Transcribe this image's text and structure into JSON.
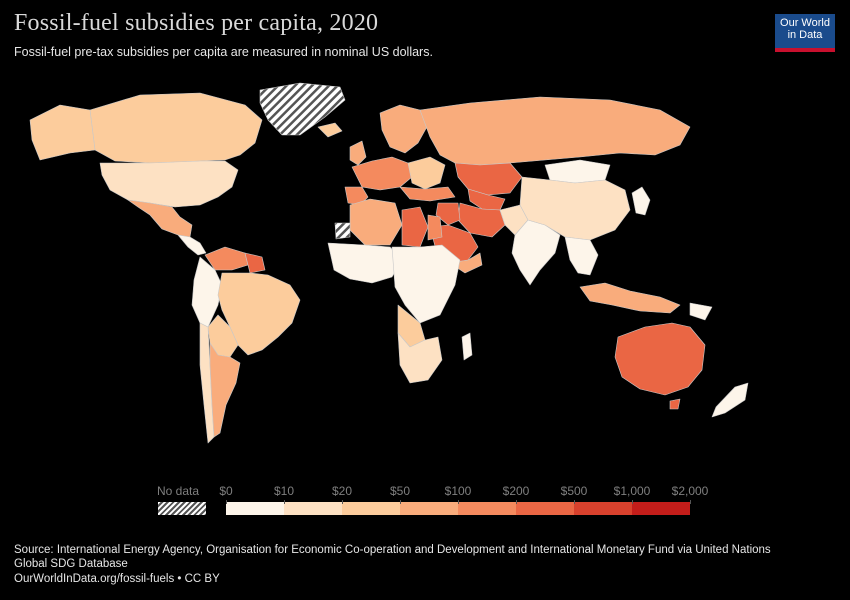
{
  "header": {
    "title": "Fossil-fuel subsidies per capita, 2020",
    "subtitle": "Fossil-fuel pre-tax subsidies per capita are measured in nominal US dollars."
  },
  "logo": {
    "line1": "Our World",
    "line2": "in Data",
    "bg_color": "#1a4b8c",
    "stripe_color": "#c8102e"
  },
  "legend": {
    "no_data_label": "No data",
    "bins": [
      {
        "label": "$0",
        "color": "#fdf5ea"
      },
      {
        "label": "$10",
        "color": "#fde1c3"
      },
      {
        "label": "$20",
        "color": "#fccc9c"
      },
      {
        "label": "$50",
        "color": "#f9ac7c"
      },
      {
        "label": "$100",
        "color": "#f48a5e"
      },
      {
        "label": "$200",
        "color": "#ea6644"
      },
      {
        "label": "$500",
        "color": "#d8412d"
      },
      {
        "label": "$1,000",
        "color": "#c31d1a"
      }
    ],
    "end_label": "$2,000"
  },
  "map": {
    "colors": {
      "land_low": "#fdf5ea",
      "land_10": "#fde1c3",
      "land_20": "#fccc9c",
      "land_50": "#f9ac7c",
      "land_100": "#f48a5e",
      "land_200": "#ea6644",
      "no_data": "hatched"
    }
  },
  "footer": {
    "source": "Source: International Energy Agency, Organisation for Economic Co-operation and Development and International Monetary Fund via United Nations Global SDG Database",
    "url_license": "OurWorldInData.org/fossil-fuels • CC BY"
  }
}
